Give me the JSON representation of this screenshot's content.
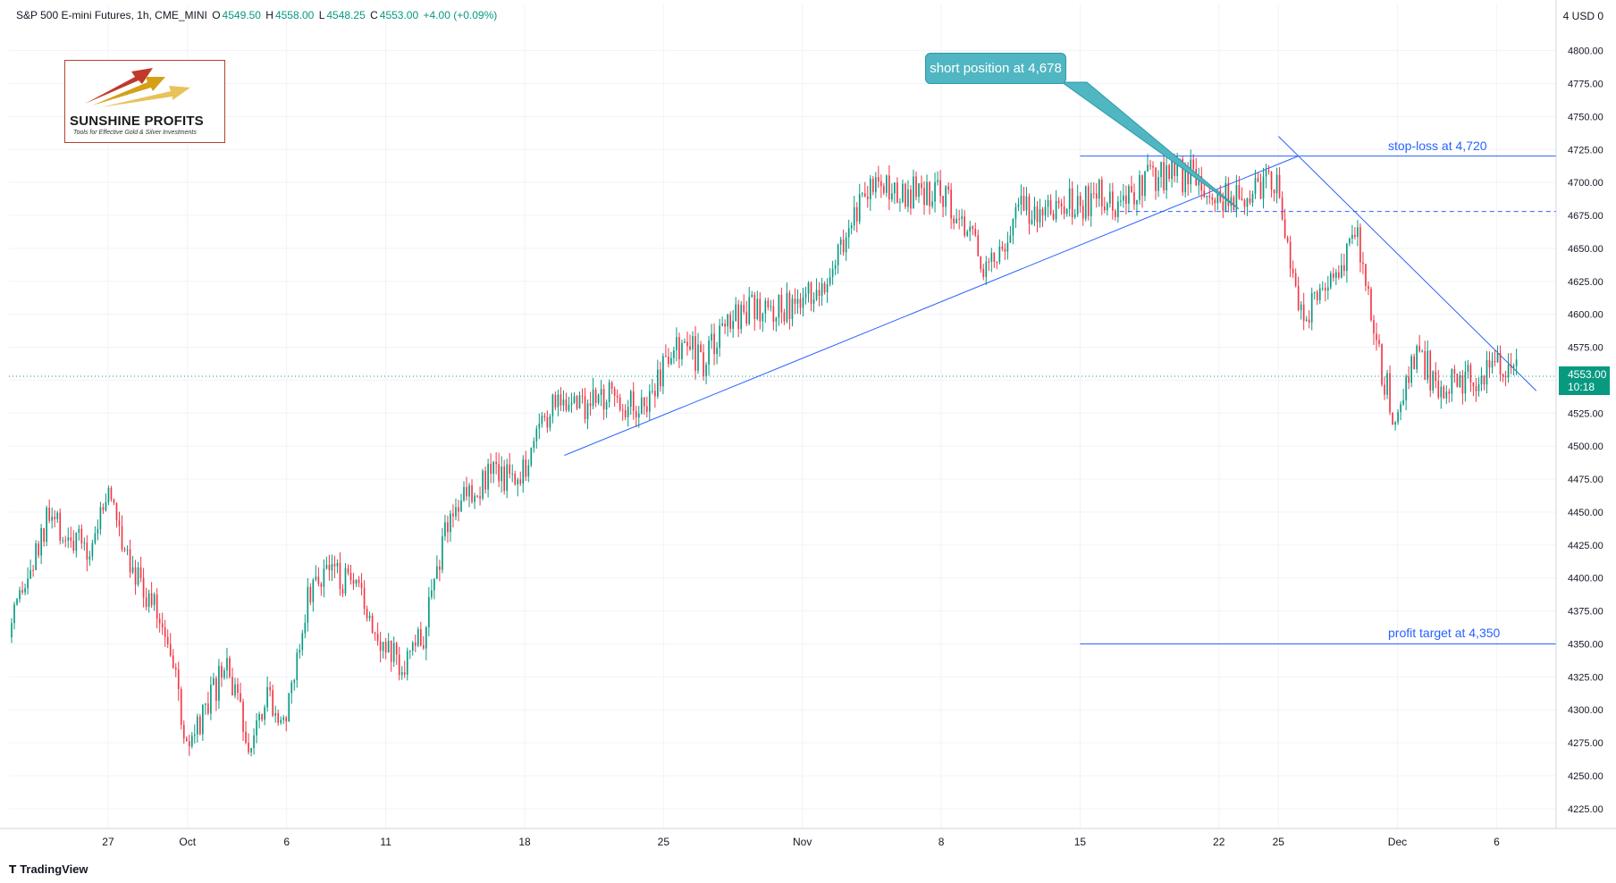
{
  "header": {
    "symbol": "S&P 500 E-mini Futures, 1h, CME_MINI",
    "open_label": "O",
    "open": "4549.50",
    "high_label": "H",
    "high": "4558.00",
    "low_label": "L",
    "low": "4548.25",
    "close_label": "C",
    "close": "4553.00",
    "change": "+4.00 (+0.09%)"
  },
  "currency": "4 USD 0",
  "logo": {
    "name": "SUNSHINE PROFITS",
    "tagline": "Tools for Effective Gold & Silver Investments"
  },
  "annotations": {
    "callout": "short position at 4,678",
    "stop_loss": "stop-loss at 4,720",
    "profit_target": "profit target at 4,350"
  },
  "last_price": {
    "value": "4553.00",
    "countdown": "10:18"
  },
  "footer": {
    "brand": "TradingView"
  },
  "colors": {
    "up": "#089981",
    "down": "#f23645",
    "line": "#2962ff",
    "callout": "#4fb6c2"
  },
  "chart_data": {
    "type": "candlestick",
    "y_axis": {
      "side": "right",
      "range": [
        4210,
        4835
      ],
      "ticks": [
        4225,
        4250,
        4275,
        4300,
        4325,
        4350,
        4375,
        4400,
        4425,
        4450,
        4475,
        4500,
        4525,
        4550,
        4575,
        4600,
        4625,
        4650,
        4675,
        4700,
        4725,
        4750,
        4775,
        4800
      ],
      "tick_labels": [
        "4225.00",
        "4250.00",
        "4275.00",
        "4300.00",
        "4325.00",
        "4350.00",
        "4375.00",
        "4400.00",
        "4425.00",
        "4450.00",
        "4475.00",
        "4500.00",
        "4525.00",
        "4550.00",
        "4575.00",
        "4600.00",
        "4625.00",
        "4650.00",
        "4675.00",
        "4700.00",
        "4725.00",
        "4750.00",
        "4775.00",
        "4800.00"
      ]
    },
    "x_axis": {
      "range": [
        "2021-09-22",
        "2021-12-09"
      ],
      "ticks": [
        {
          "date": "2021-09-27",
          "label": "27"
        },
        {
          "date": "2021-10-01",
          "label": "Oct"
        },
        {
          "date": "2021-10-06",
          "label": "6"
        },
        {
          "date": "2021-10-11",
          "label": "11"
        },
        {
          "date": "2021-10-18",
          "label": "18"
        },
        {
          "date": "2021-10-25",
          "label": "25"
        },
        {
          "date": "2021-11-01",
          "label": "Nov"
        },
        {
          "date": "2021-11-08",
          "label": "8"
        },
        {
          "date": "2021-11-15",
          "label": "15"
        },
        {
          "date": "2021-11-22",
          "label": "22"
        },
        {
          "date": "2021-11-25",
          "label": "25"
        },
        {
          "date": "2021-12-01",
          "label": "Dec"
        },
        {
          "date": "2021-12-06",
          "label": "6"
        }
      ]
    },
    "price_path": [
      [
        "2021-09-22",
        4355
      ],
      [
        "2021-09-23",
        4400
      ],
      [
        "2021-09-24",
        4445
      ],
      [
        "2021-09-25",
        4430
      ],
      [
        "2021-09-26",
        4420
      ],
      [
        "2021-09-27",
        4465
      ],
      [
        "2021-09-28",
        4420
      ],
      [
        "2021-09-29",
        4385
      ],
      [
        "2021-09-30",
        4360
      ],
      [
        "2021-10-01",
        4265
      ],
      [
        "2021-10-02",
        4300
      ],
      [
        "2021-10-03",
        4335
      ],
      [
        "2021-10-04",
        4275
      ],
      [
        "2021-10-05",
        4315
      ],
      [
        "2021-10-06",
        4290
      ],
      [
        "2021-10-07",
        4385
      ],
      [
        "2021-10-08",
        4410
      ],
      [
        "2021-10-09",
        4395
      ],
      [
        "2021-10-10",
        4380
      ],
      [
        "2021-10-11",
        4345
      ],
      [
        "2021-10-12",
        4335
      ],
      [
        "2021-10-13",
        4360
      ],
      [
        "2021-10-14",
        4440
      ],
      [
        "2021-10-15",
        4465
      ],
      [
        "2021-10-16",
        4475
      ],
      [
        "2021-10-17",
        4478
      ],
      [
        "2021-10-18",
        4485
      ],
      [
        "2021-10-19",
        4525
      ],
      [
        "2021-10-20",
        4535
      ],
      [
        "2021-10-21",
        4530
      ],
      [
        "2021-10-22",
        4540
      ],
      [
        "2021-10-23",
        4535
      ],
      [
        "2021-10-24",
        4530
      ],
      [
        "2021-10-25",
        4560
      ],
      [
        "2021-10-26",
        4580
      ],
      [
        "2021-10-27",
        4560
      ],
      [
        "2021-10-28",
        4590
      ],
      [
        "2021-10-29",
        4600
      ],
      [
        "2021-10-30",
        4605
      ],
      [
        "2021-10-31",
        4605
      ],
      [
        "2021-11-01",
        4605
      ],
      [
        "2021-11-02",
        4625
      ],
      [
        "2021-11-03",
        4655
      ],
      [
        "2021-11-04",
        4690
      ],
      [
        "2021-11-05",
        4698
      ],
      [
        "2021-11-06",
        4695
      ],
      [
        "2021-11-07",
        4690
      ],
      [
        "2021-11-08",
        4696
      ],
      [
        "2021-11-09",
        4670
      ],
      [
        "2021-11-10",
        4640
      ],
      [
        "2021-11-11",
        4650
      ],
      [
        "2021-11-12",
        4680
      ],
      [
        "2021-11-13",
        4683
      ],
      [
        "2021-11-14",
        4683
      ],
      [
        "2021-11-15",
        4684
      ],
      [
        "2021-11-16",
        4690
      ],
      [
        "2021-11-17",
        4680
      ],
      [
        "2021-11-18",
        4700
      ],
      [
        "2021-11-19",
        4705
      ],
      [
        "2021-11-20",
        4705
      ],
      [
        "2021-11-21",
        4705
      ],
      [
        "2021-11-22",
        4690
      ],
      [
        "2021-11-23",
        4685
      ],
      [
        "2021-11-24",
        4700
      ],
      [
        "2021-11-25",
        4705
      ],
      [
        "2021-11-26",
        4600
      ],
      [
        "2021-11-27",
        4605
      ],
      [
        "2021-11-28",
        4640
      ],
      [
        "2021-11-29",
        4655
      ],
      [
        "2021-11-30",
        4570
      ],
      [
        "2021-12-01",
        4515
      ],
      [
        "2021-12-02",
        4575
      ],
      [
        "2021-12-03",
        4545
      ],
      [
        "2021-12-04",
        4550
      ],
      [
        "2021-12-05",
        4550
      ],
      [
        "2021-12-06",
        4560
      ],
      [
        "2021-12-07",
        4553
      ]
    ],
    "trend_lines": [
      {
        "from": [
          "2021-10-20",
          4493
        ],
        "to": [
          "2021-11-26",
          4720
        ]
      },
      {
        "from": [
          "2021-11-25",
          4735
        ],
        "to": [
          "2021-12-08",
          4542
        ]
      }
    ],
    "horizontal_levels": [
      {
        "price": 4720,
        "from": "2021-11-15",
        "label": "stop-loss at 4,720",
        "style": "solid"
      },
      {
        "price": 4678,
        "from": "2021-11-17",
        "style": "dashed"
      },
      {
        "price": 4350,
        "from": "2021-11-15",
        "label": "profit target at 4,350",
        "style": "solid"
      }
    ],
    "last_price_line": 4553,
    "grid": true
  }
}
